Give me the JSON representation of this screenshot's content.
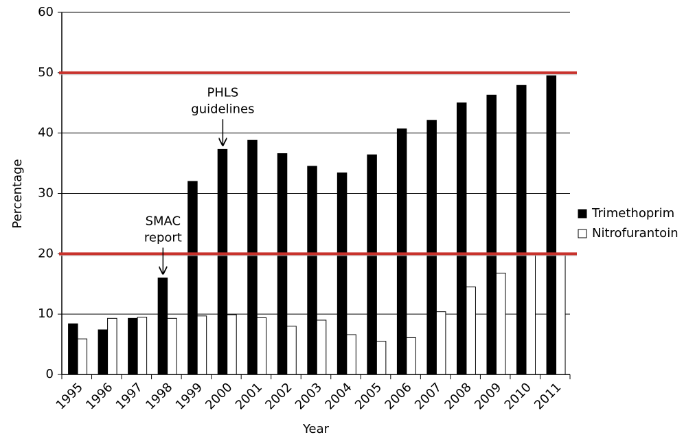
{
  "chart_data": {
    "type": "bar",
    "x_label": "Year",
    "y_label": "Percentage",
    "categories": [
      "1995",
      "1996",
      "1997",
      "1998",
      "1999",
      "2000",
      "2001",
      "2002",
      "2003",
      "2004",
      "2005",
      "2006",
      "2007",
      "2008",
      "2009",
      "2010",
      "2011"
    ],
    "series": [
      {
        "name": "Trimethoprim",
        "color": "#000000",
        "values": [
          8.4,
          7.4,
          9.3,
          16,
          32,
          37.3,
          38.8,
          36.6,
          34.5,
          33.4,
          36.4,
          40.7,
          42.1,
          45,
          46.3,
          47.9,
          49.5
        ]
      },
      {
        "name": "Nitrofurantoin",
        "color": "#ffffff",
        "values": [
          5.9,
          9.3,
          9.5,
          9.3,
          9.7,
          9.9,
          9.4,
          8.0,
          9.0,
          6.6,
          5.5,
          6.1,
          10.4,
          14.5,
          16.8,
          19.9,
          20.1
        ]
      }
    ],
    "ylim": [
      0,
      60
    ],
    "yticks": [
      0,
      10,
      20,
      30,
      40,
      50,
      60
    ],
    "grid": true,
    "legend": "right",
    "reference_lines": {
      "color": "#c8322c",
      "values": [
        50,
        20
      ]
    },
    "annotations": [
      {
        "x": "1998",
        "lines": [
          "SMAC",
          "report"
        ]
      },
      {
        "x": "2000",
        "lines": [
          "PHLS",
          "guidelines"
        ]
      }
    ]
  }
}
